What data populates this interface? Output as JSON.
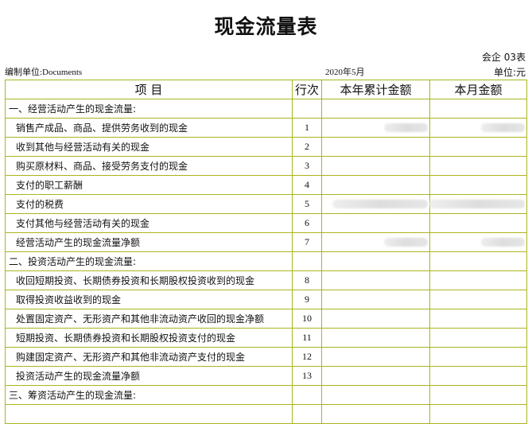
{
  "title": "现金流量表",
  "form_no": "会企 03表",
  "org": "编制单位:Documents",
  "period": "2020年5月",
  "unit": "单位:元",
  "headers": [
    "项 目",
    "行次",
    "本年累计金额",
    "本月金额"
  ],
  "rows": [
    {
      "item": "一、经营活动产生的现金流量:",
      "no": "",
      "section": true,
      "ytd_blurred": false,
      "month_blurred": false
    },
    {
      "item": "销售产成品、商品、提供劳务收到的现金",
      "no": "1",
      "ytd_blurred": true,
      "month_blurred": true
    },
    {
      "item": "收到其他与经营活动有关的现金",
      "no": "2"
    },
    {
      "item": "购买原材料、商品、接受劳务支付的现金",
      "no": "3"
    },
    {
      "item": "支付的职工薪酬",
      "no": "4"
    },
    {
      "item": "支付的税费",
      "no": "5",
      "ytd_blurred": true,
      "month_blurred": true
    },
    {
      "item": "支付其他与经营活动有关的现金",
      "no": "6"
    },
    {
      "item": "经营活动产生的现金流量净额",
      "no": "7",
      "ytd_blurred": true,
      "month_blurred": true
    },
    {
      "item": "二、投资活动产生的现金流量:",
      "no": "",
      "section": true
    },
    {
      "item": "收回短期投资、长期债券投资和长期股权投资收到的现金",
      "no": "8"
    },
    {
      "item": "取得投资收益收到的现金",
      "no": "9"
    },
    {
      "item": "处置固定资产、无形资产和其他非流动资产收回的现金净额",
      "no": "10"
    },
    {
      "item": "短期投资、长期债券投资和长期股权投资支付的现金",
      "no": "11"
    },
    {
      "item": "购建固定资产、无形资产和其他非流动资产支付的现金",
      "no": "12"
    },
    {
      "item": "投资活动产生的现金流量净额",
      "no": "13"
    },
    {
      "item": "三、筹资活动产生的现金流量:",
      "no": "",
      "section": true
    },
    {
      "item": "",
      "no": ""
    }
  ]
}
